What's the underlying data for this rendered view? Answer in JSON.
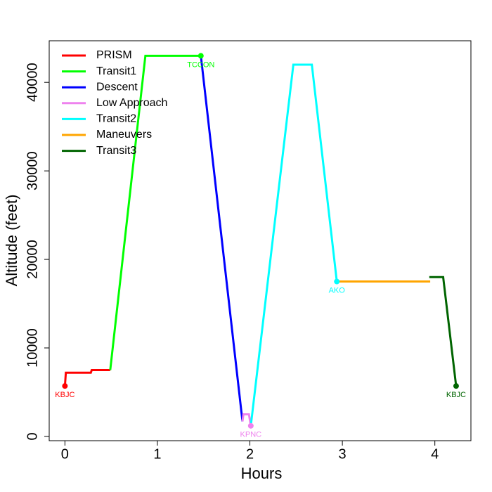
{
  "chart_data": {
    "type": "line",
    "x_label": "Hours",
    "y_label": "Altitude (feet)",
    "xlim": [
      -0.17,
      4.39
    ],
    "ylim": [
      -480,
      44700
    ],
    "xticks": [
      0,
      1,
      2,
      3,
      4
    ],
    "yticks": [
      0,
      10000,
      20000,
      30000,
      40000
    ],
    "legend": "top-left",
    "series": [
      {
        "name": "PRISM",
        "color": "#ff0000",
        "x": [
          0,
          0.01,
          0.28,
          0.29,
          0.49
        ],
        "values": [
          5700,
          7200,
          7200,
          7500,
          7500
        ]
      },
      {
        "name": "Transit1",
        "color": "#00ff00",
        "x": [
          0.49,
          0.87,
          1.47
        ],
        "values": [
          7500,
          43000,
          43000
        ]
      },
      {
        "name": "Descent",
        "color": "#0000ff",
        "x": [
          1.47,
          1.92
        ],
        "values": [
          43000,
          1700
        ]
      },
      {
        "name": "Low Approach",
        "color": "#ee82ee",
        "x": [
          1.92,
          1.93,
          1.99,
          2.01
        ],
        "values": [
          1700,
          2500,
          2500,
          1200
        ]
      },
      {
        "name": "Transit2",
        "color": "#00ffff",
        "x": [
          2.01,
          2.47,
          2.67,
          2.94
        ],
        "values": [
          1200,
          42000,
          42000,
          17500
        ]
      },
      {
        "name": "Maneuvers",
        "color": "#ffa500",
        "x": [
          2.94,
          3.95
        ],
        "values": [
          17500,
          17500
        ]
      },
      {
        "name": "Transit3",
        "color": "#006400",
        "x": [
          3.94,
          4.09,
          4.23
        ],
        "values": [
          18000,
          18000,
          5700
        ]
      }
    ],
    "points": [
      {
        "name": "KBJC",
        "color": "#ff0000",
        "x": 0,
        "y": 5700
      },
      {
        "name": "TCCON",
        "color": "#00ff00",
        "x": 1.47,
        "y": 43000
      },
      {
        "name": "KPNC",
        "color": "#ee82ee",
        "x": 2.01,
        "y": 1200
      },
      {
        "name": "AKO",
        "color": "#00ffff",
        "x": 2.94,
        "y": 17500
      },
      {
        "name": "KBJC",
        "color": "#006400",
        "x": 4.23,
        "y": 5700
      }
    ]
  }
}
